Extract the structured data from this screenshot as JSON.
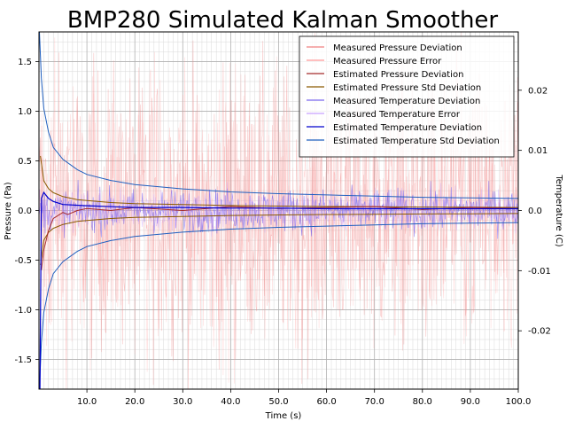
{
  "chart_data": {
    "type": "line",
    "title": "BMP280 Simulated Kalman Smoother",
    "xlabel": "Time (s)",
    "ylabel": "Pressure (Pa)",
    "y2label": "Temperature (C)",
    "xlim": [
      0,
      100
    ],
    "ylim": [
      -1.8,
      1.8
    ],
    "y2lim": [
      -0.0297,
      0.0297
    ],
    "xticks": [
      "10.0",
      "20.0",
      "30.0",
      "40.0",
      "50.0",
      "60.0",
      "70.0",
      "80.0",
      "90.0",
      "100.0"
    ],
    "yticks": [
      "-1.5",
      "-1.0",
      "-0.5",
      "0.0",
      "0.5",
      "1.0",
      "1.5"
    ],
    "y2ticks": [
      "-0.02",
      "-0.01",
      "0.0",
      "0.01",
      "0.02"
    ],
    "grid": true,
    "legend_position": "top-right",
    "colors": {
      "measured_pressure": "#f08080",
      "measured_pressure_error": "#ff9999",
      "estimated_pressure": "#a52a2a",
      "estimated_pressure_std": "#8b5a00",
      "measured_temperature": "#7b68ee",
      "measured_temperature_error": "#c8a0ff",
      "estimated_temperature": "#0000cd",
      "estimated_temperature_std": "#1f5fbf"
    },
    "series": [
      {
        "name": "Measured Pressure Deviation",
        "axis": "left",
        "summary": {
          "amplitude": 1.0,
          "mean": 0.0
        }
      },
      {
        "name": "Measured Pressure Error",
        "axis": "left",
        "summary": {
          "amplitude": 1.0,
          "mean": 0.0
        }
      },
      {
        "name": "Estimated Pressure Deviation",
        "axis": "left",
        "x": [
          0.5,
          1,
          2,
          3,
          4,
          5,
          6,
          8,
          10,
          15,
          20,
          30,
          40,
          50,
          60,
          70,
          80,
          90,
          100
        ],
        "values": [
          -0.6,
          -0.4,
          -0.2,
          -0.08,
          -0.05,
          -0.02,
          -0.04,
          0.0,
          0.02,
          0.0,
          0.03,
          0.0,
          0.04,
          0.02,
          0.03,
          0.04,
          0.01,
          0.03,
          0.02
        ]
      },
      {
        "name": "Estimated Pressure Std Deviation",
        "axis": "left",
        "x": [
          0.3,
          1,
          2,
          3,
          5,
          8,
          10,
          15,
          20,
          30,
          40,
          50,
          60,
          70,
          80,
          90,
          100
        ],
        "values": [
          0.55,
          0.3,
          0.22,
          0.18,
          0.14,
          0.11,
          0.1,
          0.08,
          0.07,
          0.06,
          0.05,
          0.045,
          0.04,
          0.038,
          0.035,
          0.033,
          0.03
        ]
      },
      {
        "name": "Measured Temperature Deviation",
        "axis": "right",
        "summary": {
          "amplitude": 0.0025,
          "mean": 0.0
        }
      },
      {
        "name": "Measured Temperature Error",
        "axis": "right",
        "summary": {
          "amplitude": 0.0025,
          "mean": 0.0
        }
      },
      {
        "name": "Estimated Temperature Deviation",
        "axis": "right",
        "x": [
          0.2,
          0.5,
          1,
          2,
          3,
          5,
          10,
          20,
          30,
          40,
          50,
          60,
          70,
          80,
          90,
          100
        ],
        "values": [
          -0.0297,
          0.002,
          0.003,
          0.002,
          0.0015,
          0.001,
          0.0008,
          0.0005,
          0.0005,
          0.0004,
          0.0004,
          0.0003,
          0.0003,
          0.0003,
          0.0003,
          0.0003
        ]
      },
      {
        "name": "Estimated Temperature Std Deviation",
        "axis": "right",
        "x": [
          0.1,
          0.5,
          1,
          2,
          3,
          5,
          8,
          10,
          15,
          20,
          30,
          40,
          50,
          60,
          70,
          80,
          90,
          100
        ],
        "values": [
          0.0297,
          0.022,
          0.017,
          0.013,
          0.0105,
          0.0085,
          0.0068,
          0.006,
          0.005,
          0.0043,
          0.0036,
          0.0031,
          0.0028,
          0.0026,
          0.0024,
          0.0022,
          0.0021,
          0.002
        ]
      }
    ]
  }
}
